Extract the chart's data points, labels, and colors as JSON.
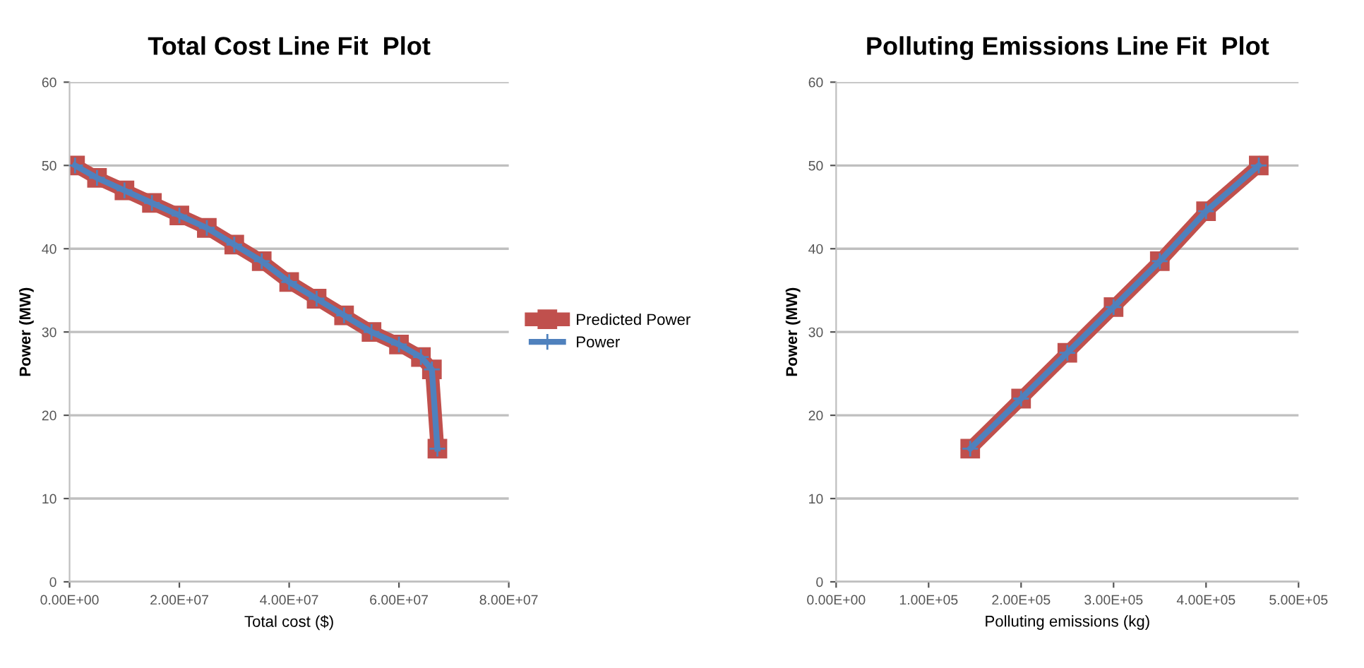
{
  "chart_data": [
    {
      "type": "line",
      "title": "Total Cost Line Fit  Plot",
      "xlabel": "Total cost ($)",
      "ylabel": "Power (MW)",
      "xlim": [
        0,
        80000000
      ],
      "xticks": [
        {
          "value": 0,
          "label": "0.00E+00"
        },
        {
          "value": 20000000,
          "label": "2.00E+07"
        },
        {
          "value": 40000000,
          "label": "4.00E+07"
        },
        {
          "value": 60000000,
          "label": "6.00E+07"
        },
        {
          "value": 80000000,
          "label": "8.00E+07"
        }
      ],
      "ylim": [
        0,
        60
      ],
      "yticks": [
        0,
        10,
        20,
        30,
        40,
        50,
        60
      ],
      "grid": "y",
      "legend": "right",
      "x": [
        1000000,
        5000000,
        10000000,
        15000000,
        20000000,
        25000000,
        30000000,
        35000000,
        40000000,
        45000000,
        50000000,
        55000000,
        60000000,
        64000000,
        66000000,
        67000000
      ],
      "series": [
        {
          "name": "Predicted Power",
          "color": "#c0504d",
          "marker": "square",
          "values": [
            50,
            48.5,
            47,
            45.5,
            44,
            42.5,
            40.5,
            38.5,
            36,
            34,
            32,
            30,
            28.5,
            27,
            25.5,
            16
          ]
        },
        {
          "name": "Power",
          "color": "#4f81bd",
          "marker": "cross",
          "values": [
            50,
            48.5,
            47,
            45.5,
            44,
            42.5,
            40.5,
            38.5,
            36,
            34,
            32,
            30,
            28.5,
            27,
            25.5,
            16
          ]
        }
      ]
    },
    {
      "type": "line",
      "title": "Polluting Emissions Line Fit  Plot",
      "xlabel": "Polluting emissions (kg)",
      "ylabel": "Power (MW)",
      "xlim": [
        0,
        500000
      ],
      "xticks": [
        {
          "value": 0,
          "label": "0.00E+00"
        },
        {
          "value": 100000,
          "label": "1.00E+05"
        },
        {
          "value": 200000,
          "label": "2.00E+05"
        },
        {
          "value": 300000,
          "label": "3.00E+05"
        },
        {
          "value": 400000,
          "label": "4.00E+05"
        },
        {
          "value": 500000,
          "label": "5.00E+05"
        }
      ],
      "ylim": [
        0,
        60
      ],
      "yticks": [
        0,
        10,
        20,
        30,
        40,
        50,
        60
      ],
      "grid": "y",
      "x": [
        145000,
        200000,
        250000,
        300000,
        350000,
        400000,
        457000
      ],
      "series": [
        {
          "color": "#c0504d",
          "marker": "square",
          "values": [
            16,
            22,
            27.5,
            33,
            38.5,
            44.5,
            50
          ]
        },
        {
          "color": "#4f81bd",
          "marker": "cross",
          "values": [
            16,
            22,
            27.5,
            33,
            38.5,
            44.5,
            50
          ]
        }
      ]
    }
  ]
}
